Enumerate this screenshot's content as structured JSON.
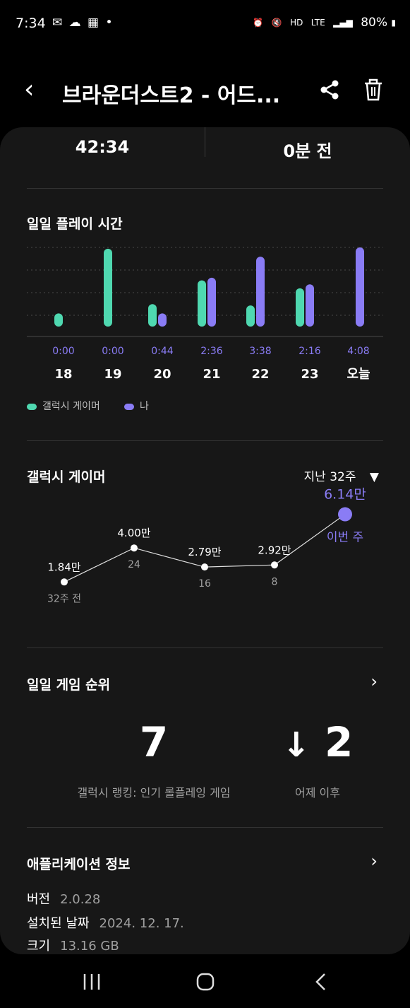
{
  "status_bar": {
    "time": "7:34",
    "right_text": "80%",
    "right_icons": [
      "alarm-icon",
      "mute-icon",
      "hd-voice-icon",
      "lte-icon",
      "signal-icon",
      "battery-icon"
    ]
  },
  "header": {
    "title": "브라운더스트2 - 어드...",
    "icons": [
      "back-icon",
      "share-icon",
      "trash-icon"
    ]
  },
  "top_stats": {
    "left": "42:34",
    "right": "0분 전"
  },
  "daily_play": {
    "title": "일일 플레이 시간",
    "legend": [
      {
        "label": "갤럭시 게이머",
        "color": "#4fd8b0"
      },
      {
        "label": "나",
        "color": "#8a7cf5"
      }
    ]
  },
  "chart_data": [
    {
      "type": "bar",
      "categories": [
        "18",
        "19",
        "20",
        "21",
        "22",
        "23",
        "오늘"
      ],
      "value_labels": [
        "0:00",
        "0:00",
        "0:44",
        "2:36",
        "3:38",
        "2:16",
        "4:08"
      ],
      "series": [
        {
          "name": "갤럭시 게이머",
          "values": [
            0.5,
            2.95,
            0.85,
            1.75,
            0.8,
            1.45,
            null
          ]
        },
        {
          "name": "나",
          "values": [
            0,
            0,
            0.5,
            1.85,
            2.65,
            1.6,
            3.0
          ]
        }
      ],
      "title": "일일 플레이 시간",
      "ylim": [
        0,
        3.0
      ],
      "grid": true,
      "legend_position": "bottom-left"
    },
    {
      "type": "line",
      "title": "갤럭시 게이머",
      "period": "지난 32주",
      "x": [
        "32주 전",
        "24",
        "16",
        "8",
        "이번 주"
      ],
      "values": [
        1.84,
        4.0,
        2.79,
        2.92,
        6.14
      ],
      "value_labels": [
        "1.84만",
        "4.00만",
        "2.79만",
        "2.92만",
        "6.14만"
      ],
      "highlight_index": 4
    }
  ],
  "daily_rank": {
    "title": "일일 게임 순위",
    "rank": "7",
    "rank_label": "갤럭시 랭킹: 인기 롤플레잉 게임",
    "change": "2",
    "change_label": "어제 이후"
  },
  "app_info": {
    "title": "애플리케이션 정보",
    "rows": [
      {
        "label": "버전",
        "value": "2.0.28"
      },
      {
        "label": "설치된 날짜",
        "value": "2024. 12. 17."
      },
      {
        "label": "크기",
        "value": "13.16 GB"
      }
    ]
  },
  "colors": {
    "accent_purple": "#8a7cf5",
    "accent_green": "#4fd8b0",
    "card_bg": "#171717"
  }
}
